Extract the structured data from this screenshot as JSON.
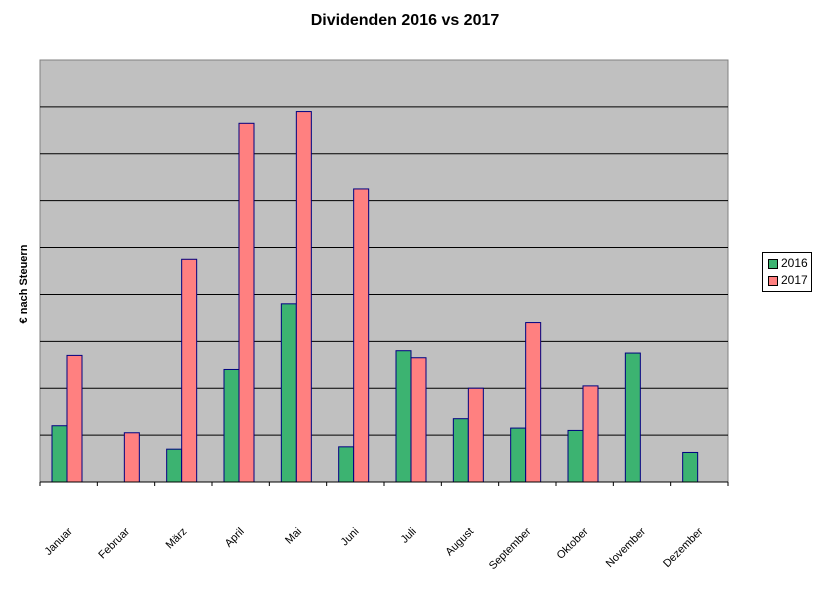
{
  "chart_data": {
    "type": "bar",
    "title": "Dividenden 2016 vs 2017",
    "xlabel": "",
    "ylabel": "€ nach Steuern",
    "categories": [
      "Januar",
      "Februar",
      "März",
      "April",
      "Mai",
      "Juni",
      "Juli",
      "August",
      "September",
      "Oktober",
      "November",
      "Dezember"
    ],
    "series": [
      {
        "name": "2016",
        "color": "#3cb371",
        "values": [
          1.2,
          0,
          0.7,
          2.4,
          3.8,
          0.75,
          2.8,
          1.35,
          1.15,
          1.1,
          2.75,
          0.63
        ]
      },
      {
        "name": "2017",
        "color": "#ff8080",
        "values": [
          2.7,
          1.05,
          4.75,
          7.65,
          7.9,
          6.25,
          2.65,
          2.0,
          3.4,
          2.05,
          0,
          0
        ]
      }
    ],
    "ylim": [
      0,
      9
    ],
    "grid": true,
    "legend": "right",
    "plot_background": "#c0c0c0"
  }
}
